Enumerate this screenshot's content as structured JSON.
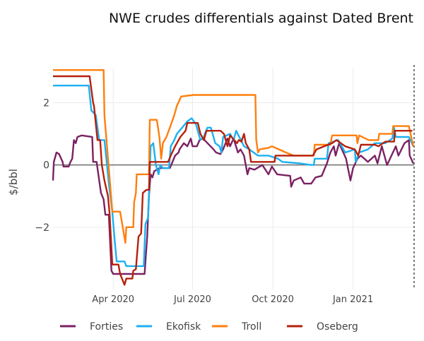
{
  "chart_data": {
    "type": "line",
    "title": "NWE crudes differentials against Dated Brent",
    "xlabel": "",
    "ylabel": "$/bbl",
    "xlim": [
      "2020-01-23",
      "2021-03-12"
    ],
    "ylim": [
      -4,
      3.1
    ],
    "grid": true,
    "legend_position": "bottom",
    "x_ticks": [
      {
        "date": "2020-04-01",
        "label": "Apr 2020"
      },
      {
        "date": "2020-07-01",
        "label": "Jul 2020"
      },
      {
        "date": "2020-10-01",
        "label": "Oct 2020"
      },
      {
        "date": "2021-01-01",
        "label": "Jan 2021"
      }
    ],
    "y_ticks": [
      {
        "value": 2,
        "label": "2"
      },
      {
        "value": 0,
        "label": "0"
      },
      {
        "value": -2,
        "label": "−2"
      }
    ],
    "vertical_marker": {
      "date": "2021-03-12",
      "style": "dashed",
      "color": "#333333"
    },
    "series": [
      {
        "name": "Forties",
        "color": "#7b2163",
        "points": [
          [
            "2020-01-23",
            -0.5
          ],
          [
            "2020-01-24",
            0.1
          ],
          [
            "2020-01-27",
            0.4
          ],
          [
            "2020-01-30",
            0.35
          ],
          [
            "2020-02-03",
            0.1
          ],
          [
            "2020-02-04",
            -0.05
          ],
          [
            "2020-02-10",
            -0.05
          ],
          [
            "2020-02-12",
            0.1
          ],
          [
            "2020-02-14",
            0.2
          ],
          [
            "2020-02-16",
            0.8
          ],
          [
            "2020-02-18",
            0.7
          ],
          [
            "2020-02-20",
            0.9
          ],
          [
            "2020-02-25",
            0.95
          ],
          [
            "2020-03-08",
            0.9
          ],
          [
            "2020-03-09",
            0.1
          ],
          [
            "2020-03-13",
            0.1
          ],
          [
            "2020-03-16",
            -0.5
          ],
          [
            "2020-03-18",
            -0.9
          ],
          [
            "2020-03-21",
            -1.1
          ],
          [
            "2020-03-23",
            -1.6
          ],
          [
            "2020-03-27",
            -1.6
          ],
          [
            "2020-03-30",
            -3.4
          ],
          [
            "2020-04-01",
            -3.5
          ],
          [
            "2020-05-07",
            -3.5
          ],
          [
            "2020-05-10",
            -2.3
          ],
          [
            "2020-05-12",
            -1.0
          ],
          [
            "2020-05-14",
            -0.3
          ],
          [
            "2020-05-16",
            -0.4
          ],
          [
            "2020-05-18",
            -0.2
          ],
          [
            "2020-05-24",
            -0.1
          ],
          [
            "2020-06-05",
            -0.1
          ],
          [
            "2020-06-11",
            0.3
          ],
          [
            "2020-06-15",
            0.4
          ],
          [
            "2020-06-16",
            0.5
          ],
          [
            "2020-06-21",
            0.7
          ],
          [
            "2020-06-25",
            0.6
          ],
          [
            "2020-06-29",
            0.85
          ],
          [
            "2020-07-01",
            0.6
          ],
          [
            "2020-07-06",
            0.6
          ],
          [
            "2020-07-09",
            0.8
          ],
          [
            "2020-07-13",
            0.85
          ],
          [
            "2020-07-25",
            0.5
          ],
          [
            "2020-07-28",
            0.4
          ],
          [
            "2020-08-02",
            0.35
          ],
          [
            "2020-08-05",
            0.5
          ],
          [
            "2020-08-10",
            0.85
          ],
          [
            "2020-08-13",
            0.6
          ],
          [
            "2020-08-17",
            0.85
          ],
          [
            "2020-08-22",
            0.4
          ],
          [
            "2020-08-25",
            0.5
          ],
          [
            "2020-08-29",
            0.3
          ],
          [
            "2020-09-02",
            -0.3
          ],
          [
            "2020-09-04",
            -0.1
          ],
          [
            "2020-09-10",
            -0.15
          ],
          [
            "2020-09-19",
            0.0
          ],
          [
            "2020-09-26",
            -0.3
          ],
          [
            "2020-09-30",
            -0.05
          ],
          [
            "2020-10-06",
            -0.3
          ],
          [
            "2020-10-21",
            -0.35
          ],
          [
            "2020-10-22",
            -0.7
          ],
          [
            "2020-10-25",
            -0.5
          ],
          [
            "2020-11-02",
            -0.4
          ],
          [
            "2020-11-06",
            -0.6
          ],
          [
            "2020-11-14",
            -0.6
          ],
          [
            "2020-11-19",
            -0.4
          ],
          [
            "2020-11-26",
            -0.35
          ],
          [
            "2020-12-02",
            0.05
          ],
          [
            "2020-12-06",
            0.4
          ],
          [
            "2020-12-10",
            0.6
          ],
          [
            "2020-12-12",
            0.3
          ],
          [
            "2020-12-16",
            0.7
          ],
          [
            "2020-12-24",
            0.2
          ],
          [
            "2020-12-29",
            -0.5
          ],
          [
            "2021-01-01",
            -0.1
          ],
          [
            "2021-01-06",
            0.2
          ],
          [
            "2021-01-10",
            0.3
          ],
          [
            "2021-01-18",
            0.1
          ],
          [
            "2021-01-26",
            0.3
          ],
          [
            "2021-01-29",
            0.05
          ],
          [
            "2021-02-03",
            0.6
          ],
          [
            "2021-02-09",
            0.0
          ],
          [
            "2021-02-19",
            0.6
          ],
          [
            "2021-02-22",
            0.3
          ],
          [
            "2021-03-01",
            0.7
          ],
          [
            "2021-03-06",
            0.8
          ],
          [
            "2021-03-07",
            0.3
          ],
          [
            "2021-03-11",
            0.05
          ]
        ]
      },
      {
        "name": "Ekofisk",
        "color": "#1cb0f0",
        "points": [
          [
            "2020-01-23",
            2.55
          ],
          [
            "2020-03-04",
            2.55
          ],
          [
            "2020-03-07",
            1.75
          ],
          [
            "2020-03-12",
            1.6
          ],
          [
            "2020-03-16",
            0.8
          ],
          [
            "2020-03-22",
            0.8
          ],
          [
            "2020-03-27",
            -0.6
          ],
          [
            "2020-03-31",
            -1.5
          ],
          [
            "2020-04-03",
            -2.5
          ],
          [
            "2020-04-05",
            -3.1
          ],
          [
            "2020-04-14",
            -3.1
          ],
          [
            "2020-04-16",
            -3.25
          ],
          [
            "2020-05-06",
            -3.25
          ],
          [
            "2020-05-08",
            -1.9
          ],
          [
            "2020-05-11",
            -1.7
          ],
          [
            "2020-05-14",
            0.6
          ],
          [
            "2020-05-17",
            0.7
          ],
          [
            "2020-05-20",
            0.0
          ],
          [
            "2020-05-23",
            -0.3
          ],
          [
            "2020-05-25",
            0.0
          ],
          [
            "2020-05-28",
            -0.1
          ],
          [
            "2020-06-04",
            -0.1
          ],
          [
            "2020-06-06",
            0.6
          ],
          [
            "2020-06-10",
            0.8
          ],
          [
            "2020-06-13",
            1.0
          ],
          [
            "2020-06-19",
            1.2
          ],
          [
            "2020-06-25",
            1.4
          ],
          [
            "2020-06-30",
            1.5
          ],
          [
            "2020-07-05",
            1.3
          ],
          [
            "2020-07-10",
            0.8
          ],
          [
            "2020-07-14",
            0.9
          ],
          [
            "2020-07-15",
            1.0
          ],
          [
            "2020-07-18",
            1.2
          ],
          [
            "2020-07-22",
            1.2
          ],
          [
            "2020-07-27",
            0.7
          ],
          [
            "2020-08-01",
            0.6
          ],
          [
            "2020-08-03",
            0.4
          ],
          [
            "2020-08-05",
            0.9
          ],
          [
            "2020-08-13",
            1.0
          ],
          [
            "2020-08-17",
            0.8
          ],
          [
            "2020-08-20",
            1.1
          ],
          [
            "2020-08-29",
            0.6
          ],
          [
            "2020-09-04",
            0.5
          ],
          [
            "2020-09-14",
            0.3
          ],
          [
            "2020-09-26",
            0.3
          ],
          [
            "2020-10-07",
            0.2
          ],
          [
            "2020-10-12",
            0.1
          ],
          [
            "2020-11-02",
            0.05
          ],
          [
            "2020-11-14",
            0.0
          ],
          [
            "2020-11-17",
            0.0
          ],
          [
            "2020-11-18",
            0.2
          ],
          [
            "2020-12-02",
            0.2
          ],
          [
            "2020-12-04",
            0.7
          ],
          [
            "2020-12-15",
            0.8
          ],
          [
            "2020-12-23",
            0.4
          ],
          [
            "2021-01-03",
            0.5
          ],
          [
            "2021-01-04",
            0.1
          ],
          [
            "2021-01-08",
            0.4
          ],
          [
            "2021-01-18",
            0.5
          ],
          [
            "2021-01-26",
            0.7
          ],
          [
            "2021-02-07",
            0.7
          ],
          [
            "2021-02-15",
            0.85
          ],
          [
            "2021-02-17",
            1.2
          ],
          [
            "2021-02-19",
            0.9
          ],
          [
            "2021-03-06",
            0.9
          ],
          [
            "2021-03-11",
            0.6
          ]
        ]
      },
      {
        "name": "Troll",
        "color": "#ff7f0e",
        "points": [
          [
            "2020-01-23",
            3.05
          ],
          [
            "2020-03-21",
            3.05
          ],
          [
            "2020-03-22",
            1.6
          ],
          [
            "2020-03-28",
            -0.45
          ],
          [
            "2020-03-31",
            -1.5
          ],
          [
            "2020-04-09",
            -1.5
          ],
          [
            "2020-04-15",
            -2.5
          ],
          [
            "2020-04-16",
            -2.0
          ],
          [
            "2020-04-24",
            -2.0
          ],
          [
            "2020-04-25",
            -1.2
          ],
          [
            "2020-04-27",
            -0.9
          ],
          [
            "2020-04-28",
            -0.3
          ],
          [
            "2020-05-12",
            -0.3
          ],
          [
            "2020-05-13",
            1.45
          ],
          [
            "2020-05-21",
            1.45
          ],
          [
            "2020-05-24",
            0.9
          ],
          [
            "2020-05-26",
            0.2
          ],
          [
            "2020-05-28",
            0.7
          ],
          [
            "2020-06-01",
            0.9
          ],
          [
            "2020-06-05",
            1.2
          ],
          [
            "2020-06-10",
            1.6
          ],
          [
            "2020-06-13",
            1.9
          ],
          [
            "2020-06-18",
            2.2
          ],
          [
            "2020-07-02",
            2.25
          ],
          [
            "2020-09-11",
            2.25
          ],
          [
            "2020-09-12",
            0.8
          ],
          [
            "2020-09-14",
            0.4
          ],
          [
            "2020-09-16",
            0.5
          ],
          [
            "2020-09-26",
            0.55
          ],
          [
            "2020-09-30",
            0.6
          ],
          [
            "2020-10-04",
            0.55
          ],
          [
            "2020-10-16",
            0.4
          ],
          [
            "2020-10-25",
            0.3
          ],
          [
            "2020-11-17",
            0.3
          ],
          [
            "2020-11-18",
            0.65
          ],
          [
            "2020-12-06",
            0.65
          ],
          [
            "2020-12-08",
            0.95
          ],
          [
            "2021-01-05",
            0.95
          ],
          [
            "2021-01-06",
            0.7
          ],
          [
            "2021-01-08",
            0.95
          ],
          [
            "2021-01-19",
            0.8
          ],
          [
            "2021-01-30",
            0.8
          ],
          [
            "2021-01-31",
            1.0
          ],
          [
            "2021-02-15",
            1.0
          ],
          [
            "2021-02-16",
            1.25
          ],
          [
            "2021-03-06",
            1.25
          ],
          [
            "2021-03-11",
            0.6
          ]
        ]
      },
      {
        "name": "Oseberg",
        "color": "#b5200d",
        "points": [
          [
            "2020-01-23",
            2.85
          ],
          [
            "2020-03-05",
            2.85
          ],
          [
            "2020-03-09",
            2.0
          ],
          [
            "2020-03-10",
            1.9
          ],
          [
            "2020-03-14",
            0.8
          ],
          [
            "2020-03-17",
            0.8
          ],
          [
            "2020-03-19",
            0.0
          ],
          [
            "2020-03-22",
            -0.5
          ],
          [
            "2020-03-26",
            -1.0
          ],
          [
            "2020-03-28",
            -1.6
          ],
          [
            "2020-03-31",
            -3.2
          ],
          [
            "2020-04-07",
            -3.2
          ],
          [
            "2020-04-09",
            -3.5
          ],
          [
            "2020-04-14",
            -3.85
          ],
          [
            "2020-04-16",
            -3.65
          ],
          [
            "2020-04-23",
            -3.65
          ],
          [
            "2020-04-24",
            -3.4
          ],
          [
            "2020-04-27",
            -3.35
          ],
          [
            "2020-04-30",
            -2.3
          ],
          [
            "2020-05-03",
            -2.2
          ],
          [
            "2020-05-05",
            -0.9
          ],
          [
            "2020-05-09",
            -0.8
          ],
          [
            "2020-05-12",
            -0.8
          ],
          [
            "2020-05-13",
            0.1
          ],
          [
            "2020-06-03",
            0.1
          ],
          [
            "2020-06-06",
            0.3
          ],
          [
            "2020-06-11",
            0.6
          ],
          [
            "2020-06-17",
            0.9
          ],
          [
            "2020-06-23",
            1.1
          ],
          [
            "2020-06-25",
            1.35
          ],
          [
            "2020-07-07",
            1.35
          ],
          [
            "2020-07-10",
            1.0
          ],
          [
            "2020-07-14",
            0.8
          ],
          [
            "2020-07-17",
            1.1
          ],
          [
            "2020-08-02",
            1.1
          ],
          [
            "2020-08-06",
            1.0
          ],
          [
            "2020-08-10",
            0.6
          ],
          [
            "2020-08-13",
            0.95
          ],
          [
            "2020-08-21",
            0.7
          ],
          [
            "2020-08-23",
            0.8
          ],
          [
            "2020-08-26",
            0.75
          ],
          [
            "2020-08-29",
            1.0
          ],
          [
            "2020-08-31",
            0.7
          ],
          [
            "2020-09-04",
            0.5
          ],
          [
            "2020-09-06",
            0.1
          ],
          [
            "2020-10-03",
            0.1
          ],
          [
            "2020-10-04",
            0.3
          ],
          [
            "2020-11-16",
            0.3
          ],
          [
            "2020-11-20",
            0.5
          ],
          [
            "2020-12-08",
            0.7
          ],
          [
            "2020-12-13",
            0.8
          ],
          [
            "2020-12-23",
            0.6
          ],
          [
            "2021-01-03",
            0.5
          ],
          [
            "2021-01-07",
            0.3
          ],
          [
            "2021-01-10",
            0.65
          ],
          [
            "2021-01-26",
            0.65
          ],
          [
            "2021-01-30",
            0.6
          ],
          [
            "2021-02-07",
            0.75
          ],
          [
            "2021-02-17",
            0.75
          ],
          [
            "2021-02-18",
            1.1
          ],
          [
            "2021-03-10",
            1.1
          ]
        ]
      }
    ]
  }
}
